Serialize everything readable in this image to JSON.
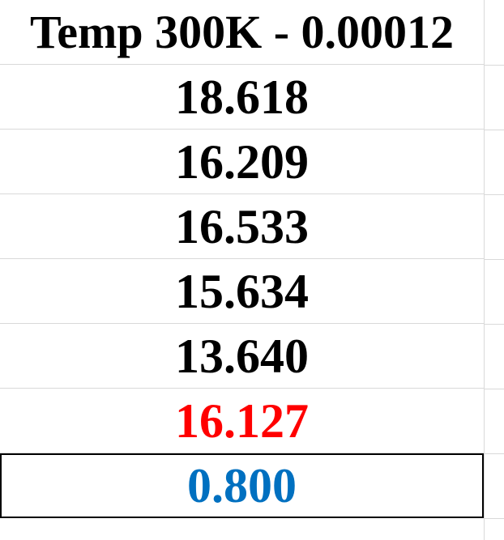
{
  "sheet": {
    "header": "Temp 300K - 0.00012",
    "values": [
      "18.618",
      "16.209",
      "16.533",
      "15.634",
      "13.640"
    ],
    "highlight_value": "16.127",
    "selected_value": "0.800",
    "colors": {
      "text": "#000000",
      "highlight": "#ff0000",
      "selected_text": "#0070c0",
      "gridline": "#d9d9d9"
    }
  }
}
